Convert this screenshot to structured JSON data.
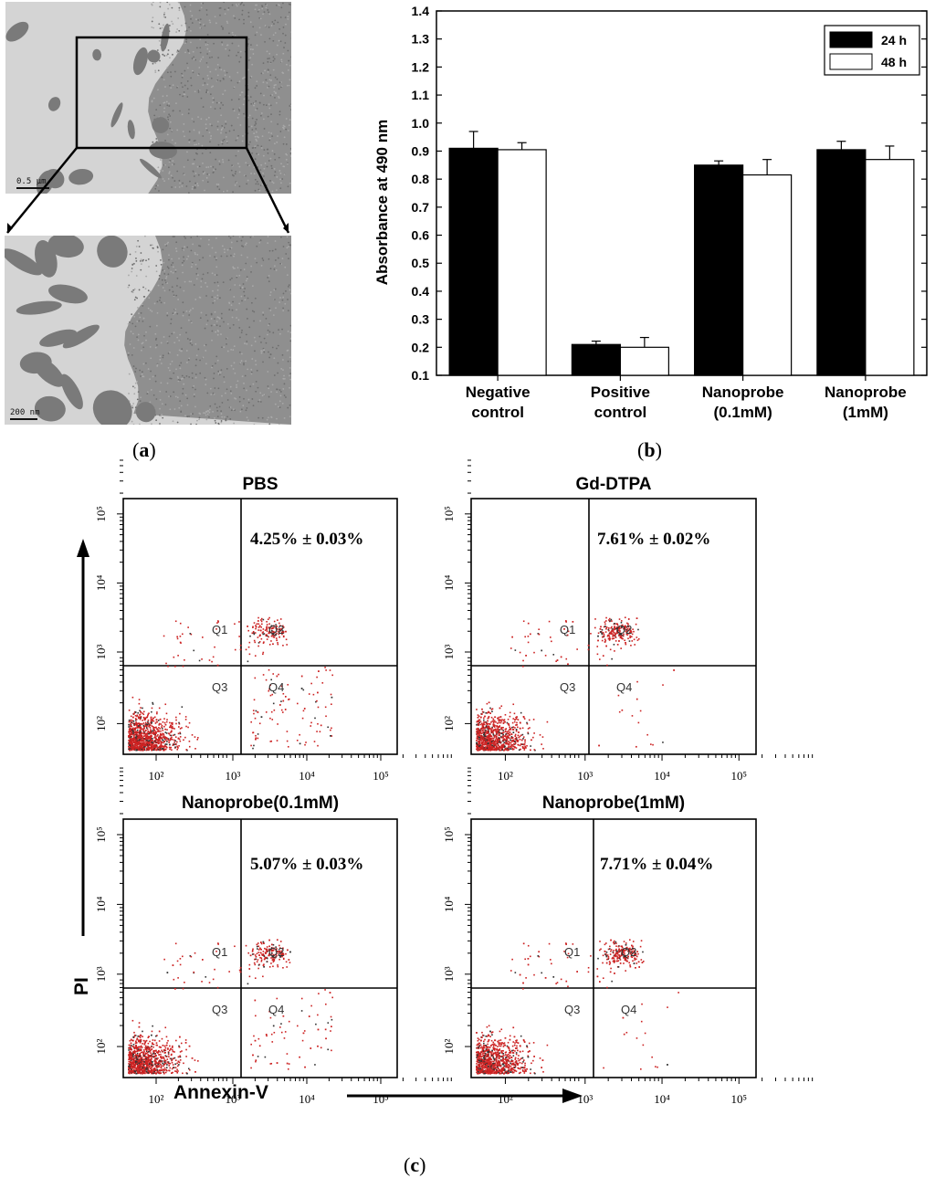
{
  "panels": {
    "a": {
      "label": "a",
      "scale_top": "0.5 μm",
      "scale_bottom": "200 nm"
    },
    "b": {
      "label": "b"
    },
    "c": {
      "label": "c"
    }
  },
  "chart_data": [
    {
      "type": "bar",
      "panel": "b",
      "ylabel": "Absorbance at 490 nm",
      "xlabel": "",
      "ylim": [
        0.1,
        1.4
      ],
      "yticks": [
        "0.1",
        "0.2",
        "0.3",
        "0.4",
        "0.5",
        "0.6",
        "0.7",
        "0.8",
        "0.9",
        "1.0",
        "1.1",
        "1.2",
        "1.3",
        "1.4"
      ],
      "categories": [
        [
          "Negative",
          "control"
        ],
        [
          "Positive",
          "control"
        ],
        [
          "Nanoprobe",
          "(0.1mM)"
        ],
        [
          "Nanoprobe",
          "(1mM)"
        ]
      ],
      "legend_position": "top-right",
      "series": [
        {
          "name": "24 h",
          "color": "#000000",
          "values": [
            0.91,
            0.21,
            0.85,
            0.905
          ],
          "errors": [
            0.06,
            0.012,
            0.015,
            0.03
          ]
        },
        {
          "name": "48 h",
          "color": "#ffffff",
          "values": [
            0.905,
            0.2,
            0.815,
            0.87
          ],
          "errors": [
            0.025,
            0.035,
            0.055,
            0.048
          ]
        }
      ]
    },
    {
      "type": "scatter",
      "panel": "c",
      "subtype": "flow-cytometry-quadrant",
      "xlabel": "Annexin-V",
      "ylabel": "PI",
      "scale": "log",
      "xticks": [
        "10²",
        "10³",
        "10⁴",
        "10⁵"
      ],
      "yticks": [
        "10²",
        "10³",
        "10⁴",
        "10⁵"
      ],
      "quadrant_labels": [
        "Q1",
        "Q2",
        "Q3",
        "Q4"
      ],
      "plots": [
        {
          "title": "PBS",
          "percentage": "4.25% ± 0.03%"
        },
        {
          "title": "Gd-DTPA",
          "percentage": "7.61% ± 0.02%"
        },
        {
          "title": "Nanoprobe(0.1mM)",
          "percentage": "5.07% ± 0.03%"
        },
        {
          "title": "Nanoprobe(1mM)",
          "percentage": "7.71% ± 0.04%"
        }
      ],
      "point_color": "#cc2222"
    }
  ]
}
